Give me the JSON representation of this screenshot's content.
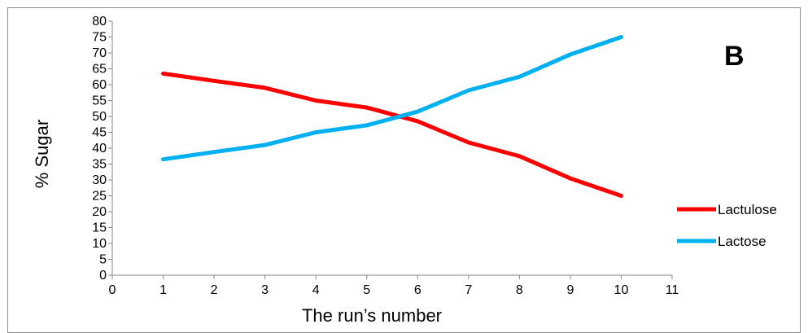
{
  "chart_data": {
    "type": "line",
    "panel_label": "B",
    "xlabel": "The run’s number",
    "ylabel": "% Sugar",
    "xlim": [
      0,
      11
    ],
    "ylim": [
      0,
      80
    ],
    "x_ticks": [
      0,
      1,
      2,
      3,
      4,
      5,
      6,
      7,
      8,
      9,
      10,
      11
    ],
    "y_ticks": [
      0,
      5,
      10,
      15,
      20,
      25,
      30,
      35,
      40,
      45,
      50,
      55,
      60,
      65,
      70,
      75,
      80
    ],
    "grid": false,
    "legend_position": "right",
    "x": [
      1,
      2,
      3,
      4,
      5,
      6,
      7,
      8,
      9,
      10
    ],
    "series": [
      {
        "name": "Lactulose",
        "color": "#ff0000",
        "values": [
          63.5,
          61.2,
          59.0,
          55.0,
          52.8,
          48.5,
          41.8,
          37.5,
          30.5,
          25.0
        ]
      },
      {
        "name": "Lactose",
        "color": "#00b0f0",
        "values": [
          36.5,
          38.8,
          41.0,
          45.0,
          47.2,
          51.5,
          58.2,
          62.5,
          69.5,
          75.0
        ]
      }
    ]
  }
}
